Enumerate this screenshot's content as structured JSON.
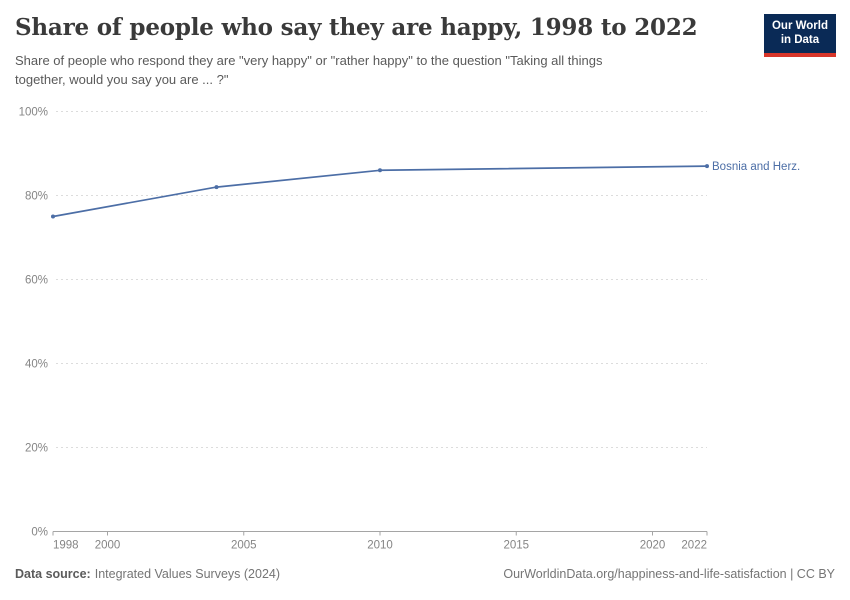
{
  "header": {
    "title": "Share of people who say they are happy, 1998 to 2022",
    "subtitle": "Share of people who respond they are \"very happy\" or \"rather happy\" to the question \"Taking all things\ntogether, would you say you are ... ?\"",
    "logo": {
      "line1": "Our World",
      "line2": "in Data"
    }
  },
  "chart_data": {
    "type": "line",
    "title": "Share of people who say they are happy, 1998 to 2022",
    "xlabel": "",
    "ylabel": "",
    "xlim": [
      1998,
      2022
    ],
    "ylim": [
      0,
      100
    ],
    "grid": "horizontal-dashed",
    "legend": "end-of-line-label",
    "series": [
      {
        "name": "Bosnia and Herz.",
        "color": "#4c6ea6",
        "x": [
          1998,
          2004,
          2010,
          2022
        ],
        "values": [
          75,
          82,
          86,
          87
        ]
      }
    ],
    "yticks": [
      {
        "value": 0,
        "label": "0%"
      },
      {
        "value": 20,
        "label": "20%"
      },
      {
        "value": 40,
        "label": "40%"
      },
      {
        "value": 60,
        "label": "60%"
      },
      {
        "value": 80,
        "label": "80%"
      },
      {
        "value": 100,
        "label": "100%"
      }
    ],
    "xticks": [
      {
        "value": 1998,
        "label": "1998"
      },
      {
        "value": 2000,
        "label": "2000"
      },
      {
        "value": 2005,
        "label": "2005"
      },
      {
        "value": 2010,
        "label": "2010"
      },
      {
        "value": 2015,
        "label": "2015"
      },
      {
        "value": 2020,
        "label": "2020"
      },
      {
        "value": 2022,
        "label": "2022"
      }
    ]
  },
  "chart_style": {
    "grid_color": "#dcdcdc",
    "axis_color": "#a5a5a5",
    "axis_text_color": "#858585"
  },
  "footer": {
    "source_label": "Data source:",
    "source_value": "Integrated Values Surveys (2024)",
    "attribution": "OurWorldinData.org/happiness-and-life-satisfaction | CC BY"
  }
}
